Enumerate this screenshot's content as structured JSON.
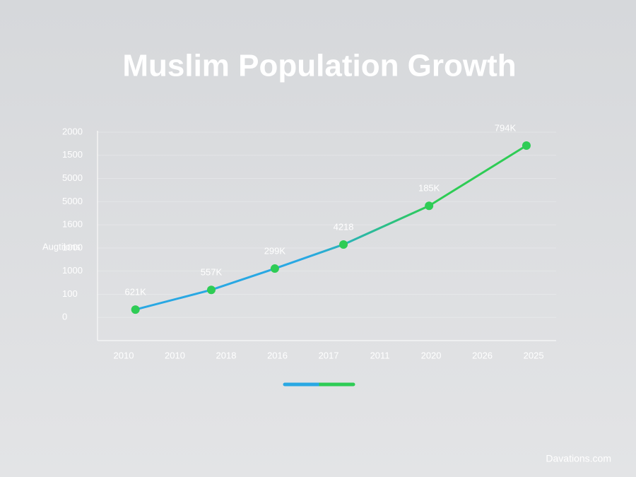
{
  "chart_data": {
    "type": "line",
    "title": "Muslim Population Growth",
    "y_axis_label": "Augtiions",
    "x": [
      0.23,
      1.71,
      2.95,
      4.29,
      5.96,
      7.86
    ],
    "xlim": [
      -0.51,
      8.44
    ],
    "xticks": [
      {
        "value": 0,
        "label": "2010"
      },
      {
        "value": 1,
        "label": "2010"
      },
      {
        "value": 2,
        "label": "2018"
      },
      {
        "value": 3,
        "label": "2016"
      },
      {
        "value": 4,
        "label": "2017"
      },
      {
        "value": 5,
        "label": "2011"
      },
      {
        "value": 6,
        "label": "2020"
      },
      {
        "value": 7,
        "label": "2026"
      },
      {
        "value": 8,
        "label": "2025"
      }
    ],
    "ylim": [
      -1,
      8
    ],
    "yticks": [
      0,
      {
        "value": 1,
        "label": "100"
      },
      {
        "value": 2,
        "label": "1000"
      },
      {
        "value": 3,
        "label": "1000"
      },
      {
        "value": 4,
        "label": "1600"
      },
      {
        "value": 5,
        "label": "5000"
      },
      {
        "value": 6,
        "label": "5000"
      },
      {
        "value": 7,
        "label": "1500"
      },
      {
        "value": 8,
        "label": "2000"
      }
    ],
    "series": [
      {
        "color": "#2ecc55",
        "line_colors": [
          "#29a8e3",
          "#2ecc55"
        ],
        "values": [
          0.34,
          1.19,
          2.11,
          3.15,
          4.82,
          7.42
        ]
      }
    ],
    "point_annotations": [
      "621K",
      "557K",
      "299K",
      "4218",
      "185K",
      "794K"
    ],
    "grid": true,
    "watermark": "Davations.com"
  }
}
